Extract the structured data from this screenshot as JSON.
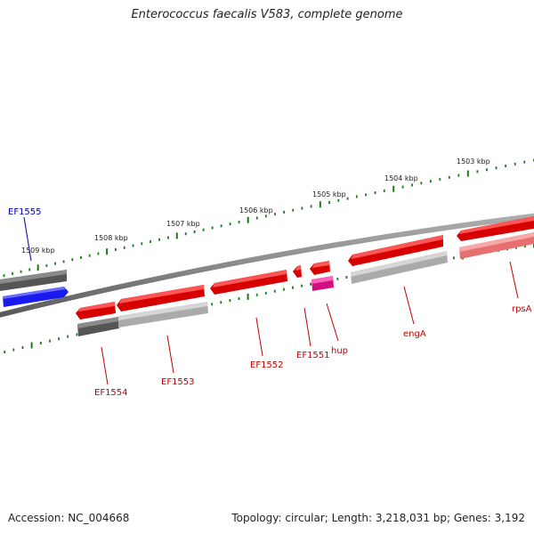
{
  "title": "Enterococcus faecalis V583, complete genome",
  "footer": {
    "accession": "Accession: NC_004668",
    "stats": "Topology: circular; Length: 3,218,031 bp; Genes: 3,192"
  },
  "colors": {
    "red_gene": "#ee1111",
    "pink_gene": "#f28080",
    "dark_gray": "#606060",
    "light_gray": "#b8b8b8",
    "blue_gene": "#1a1aee",
    "magenta_gene": "#e01890",
    "tick_green": "#1a7a1a",
    "label_red": "#c00000",
    "label_blue": "#0000aa"
  },
  "kbp_labels": [
    "1509 kbp",
    "1508 kbp",
    "1507 kbp",
    "1506 kbp",
    "1505 kbp",
    "1504 kbp",
    "1503 kbp"
  ],
  "gene_labels": [
    "EF1555",
    "EF1554",
    "EF1553",
    "EF1552",
    "EF1551",
    "hup",
    "engA",
    "rpsA"
  ],
  "icons": {
    "forward_gene": "arrow-right-block",
    "reverse_gene": "arrow-left-block"
  }
}
